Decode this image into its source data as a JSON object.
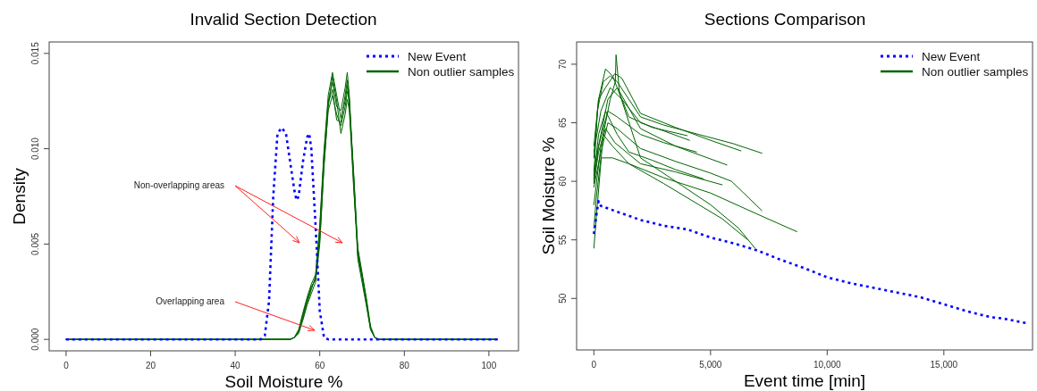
{
  "chart_data": [
    {
      "type": "line",
      "title": "Invalid Section Detection",
      "xlabel": "Soil Moisture %",
      "ylabel": "Density",
      "xlim": [
        -4,
        107
      ],
      "ylim": [
        -0.0006,
        0.0156
      ],
      "xticks": [
        0,
        20,
        40,
        60,
        80,
        100
      ],
      "yticks": [
        {
          "value": 0,
          "label": "0.000"
        },
        {
          "value": 0.005,
          "label": "0.005"
        },
        {
          "value": 0.01,
          "label": "0.010"
        },
        {
          "value": 0.015,
          "label": "0.015"
        }
      ],
      "legend": "top right",
      "annotations": [
        "Non-overlapping areas",
        "Overlapping area"
      ],
      "series": [
        {
          "name": "New Event",
          "color": "#0000ff",
          "line_style": "dotted",
          "x": [
            0,
            10,
            20,
            30,
            40,
            46,
            47,
            48,
            49,
            50,
            51,
            52,
            53,
            54,
            54.5,
            55,
            56,
            57,
            57.5,
            58,
            59,
            60,
            61,
            62,
            70,
            80,
            90,
            102
          ],
          "values": [
            0,
            0,
            0,
            0,
            0,
            0,
            0.0002,
            0.002,
            0.0075,
            0.0108,
            0.0111,
            0.0108,
            0.0093,
            0.0078,
            0.0073,
            0.0075,
            0.0093,
            0.0106,
            0.0108,
            0.01,
            0.006,
            0.0015,
            0.0001,
            0,
            0,
            0,
            0,
            0
          ]
        },
        {
          "name": "Non outlier samples",
          "color": "#006400",
          "line_style": "solid",
          "x": [
            0,
            53,
            54,
            55,
            56,
            57,
            58,
            59,
            60,
            61,
            62,
            63,
            64,
            65,
            66,
            66.5,
            67,
            68,
            69,
            70,
            71,
            72,
            73,
            74,
            102
          ],
          "values": [
            0,
            0,
            0.0001,
            0.0004,
            0.0012,
            0.002,
            0.0027,
            0.0032,
            0.0055,
            0.0095,
            0.0125,
            0.0135,
            0.0122,
            0.012,
            0.0132,
            0.014,
            0.0128,
            0.0085,
            0.0045,
            0.0033,
            0.002,
            0.0006,
            0.0001,
            0,
            0
          ]
        },
        {
          "color": "#006400",
          "line_style": "solid",
          "x": [
            0,
            53,
            54,
            55,
            56,
            57,
            58,
            59,
            60,
            61,
            62,
            63,
            64,
            65,
            66,
            66.5,
            67,
            68,
            69,
            70,
            71,
            72,
            73,
            74,
            102
          ],
          "values": [
            0,
            0,
            0.0001,
            0.0005,
            0.0014,
            0.0022,
            0.0029,
            0.0034,
            0.006,
            0.0099,
            0.0128,
            0.014,
            0.0128,
            0.0116,
            0.0125,
            0.0133,
            0.0124,
            0.0088,
            0.0048,
            0.0035,
            0.0022,
            0.0007,
            0.0001,
            0,
            0
          ]
        },
        {
          "color": "#006400",
          "line_style": "solid",
          "x": [
            0,
            53,
            54,
            55,
            56,
            57,
            58,
            59,
            60,
            61,
            62,
            63,
            64,
            65,
            66,
            66.5,
            67,
            68,
            69,
            70,
            71,
            72,
            73,
            74,
            102
          ],
          "values": [
            0,
            0,
            0.0001,
            0.0003,
            0.001,
            0.0018,
            0.0024,
            0.003,
            0.005,
            0.0092,
            0.012,
            0.0128,
            0.0118,
            0.0112,
            0.0122,
            0.013,
            0.0126,
            0.0082,
            0.0042,
            0.003,
            0.0018,
            0.0005,
            0.0001,
            0,
            0
          ]
        },
        {
          "color": "#006400",
          "line_style": "solid",
          "x": [
            0,
            53,
            54,
            55,
            56,
            57,
            58,
            59,
            60,
            61,
            62,
            63,
            64,
            65,
            66,
            66.5,
            67,
            68,
            69,
            70,
            71,
            72,
            73,
            74,
            102
          ],
          "values": [
            0,
            0,
            0.0001,
            0.0004,
            0.0013,
            0.0021,
            0.0028,
            0.0031,
            0.0052,
            0.009,
            0.0122,
            0.0138,
            0.0125,
            0.0108,
            0.0118,
            0.0126,
            0.012,
            0.008,
            0.0047,
            0.0034,
            0.0021,
            0.0006,
            0.0001,
            0,
            0
          ]
        },
        {
          "color": "#006400",
          "line_style": "solid",
          "x": [
            0,
            53,
            54,
            55,
            56,
            57,
            58,
            59,
            60,
            61,
            62,
            63,
            64,
            65,
            66,
            66.5,
            67,
            68,
            69,
            70,
            71,
            72,
            73,
            74,
            102
          ],
          "values": [
            0,
            0,
            0.0001,
            0.0005,
            0.0011,
            0.0019,
            0.0026,
            0.0033,
            0.0058,
            0.0097,
            0.0124,
            0.0131,
            0.0115,
            0.0114,
            0.0128,
            0.0136,
            0.0122,
            0.0087,
            0.0044,
            0.0032,
            0.0019,
            0.0006,
            0.0001,
            0,
            0
          ]
        }
      ]
    },
    {
      "type": "line",
      "title": "Sections Comparison",
      "xlabel": "Event time [min]",
      "ylabel": "Soil Moisture %",
      "xlim": [
        -740,
        18800
      ],
      "ylim": [
        45.6,
        71.9
      ],
      "xticks": [
        0,
        {
          "value": 5000,
          "label": "5,000"
        },
        {
          "value": 10000,
          "label": "10,000"
        },
        {
          "value": 15000,
          "label": "15,000"
        }
      ],
      "yticks": [
        50,
        55,
        60,
        65,
        70
      ],
      "legend": "top right",
      "series": [
        {
          "name": "New Event",
          "color": "#0000ff",
          "line_style": "dotted",
          "x": [
            0,
            100,
            200,
            300,
            1000,
            2000,
            3000,
            4000,
            5000,
            6000,
            7000,
            8000,
            9000,
            10000,
            11000,
            12000,
            13000,
            14000,
            15000,
            16000,
            17000,
            17500,
            18500
          ],
          "values": [
            55.5,
            57,
            58.3,
            57.9,
            57.4,
            56.7,
            56.2,
            55.9,
            55.2,
            54.7,
            54.1,
            53.3,
            52.6,
            51.8,
            51.3,
            50.9,
            50.5,
            50.1,
            49.5,
            48.9,
            48.4,
            48.3,
            47.9
          ]
        },
        {
          "name": "Non outlier samples",
          "color": "#006400",
          "line_style": "solid",
          "x": [
            0,
            150,
            400,
            700,
            1000,
            2000,
            3000,
            4500,
            6000,
            7200
          ],
          "values": [
            60.5,
            66,
            68.5,
            69,
            68.5,
            65.5,
            64.8,
            64,
            63.2,
            62.4
          ]
        },
        {
          "color": "#006400",
          "line_style": "solid",
          "x": [
            0,
            200,
            500,
            900,
            1200,
            2000,
            3500,
            5000,
            6300
          ],
          "values": [
            62,
            67,
            68,
            69.2,
            68.8,
            65.8,
            64.6,
            63.5,
            62.6
          ]
        },
        {
          "color": "#006400",
          "line_style": "solid",
          "x": [
            0,
            300,
            600,
            1000,
            2000,
            3500,
            5700
          ],
          "values": [
            61,
            64,
            67,
            68,
            64.5,
            63,
            61.4
          ]
        },
        {
          "color": "#006400",
          "line_style": "solid",
          "x": [
            0,
            200,
            500,
            800,
            1500,
            2500,
            4000
          ],
          "values": [
            63,
            67,
            69.6,
            69,
            65.5,
            64.6,
            63.9
          ]
        },
        {
          "color": "#006400",
          "line_style": "solid",
          "x": [
            0,
            300,
            700,
            1200,
            2000,
            3000,
            4100
          ],
          "values": [
            62.5,
            66,
            68,
            67,
            65,
            64.3,
            63.5
          ]
        },
        {
          "color": "#006400",
          "line_style": "solid",
          "x": [
            0,
            200,
            600,
            1000,
            2000,
            3000,
            4400
          ],
          "values": [
            60,
            63,
            66,
            65.5,
            64,
            63.3,
            62.5
          ]
        },
        {
          "color": "#006400",
          "line_style": "solid",
          "x": [
            0,
            250,
            600,
            1000,
            2000,
            3500,
            5000,
            5900,
            7200
          ],
          "values": [
            59.5,
            62,
            65,
            64.5,
            62.8,
            61.7,
            60.7,
            60,
            57.5
          ]
        },
        {
          "color": "#006400",
          "line_style": "solid",
          "x": [
            0,
            100,
            300,
            800,
            1500,
            3000,
            5000,
            7000,
            8700
          ],
          "values": [
            56,
            58.5,
            62,
            62,
            61.5,
            60.3,
            59,
            57.2,
            55.7
          ]
        },
        {
          "color": "#006400",
          "line_style": "solid",
          "x": [
            0,
            150,
            400,
            800,
            1500,
            3000,
            4500,
            5500,
            6600
          ],
          "values": [
            54.3,
            58,
            64,
            63,
            61.5,
            59.8,
            58,
            56.8,
            55
          ]
        },
        {
          "color": "#006400",
          "line_style": "solid",
          "x": [
            0,
            200,
            500,
            900,
            2000,
            3500,
            5500
          ],
          "values": [
            59.8,
            62.5,
            64.5,
            63.3,
            61.5,
            60.8,
            59.7
          ]
        },
        {
          "color": "#006400",
          "line_style": "solid",
          "x": [
            0,
            200,
            500,
            1000,
            1500,
            2500,
            3500,
            4700
          ],
          "values": [
            60.2,
            64,
            66,
            64,
            62.5,
            61.8,
            61,
            60.2
          ]
        },
        {
          "color": "#006400",
          "line_style": "solid",
          "x": [
            0,
            300,
            700,
            920,
            950,
            1100,
            2000,
            3500,
            5000,
            6200,
            6900
          ],
          "values": [
            58,
            63,
            67,
            68.5,
            70.8,
            67.5,
            62,
            60,
            58,
            56,
            54.3
          ]
        }
      ]
    }
  ]
}
